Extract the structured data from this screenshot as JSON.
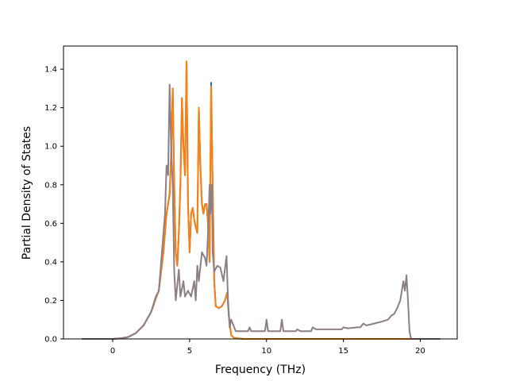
{
  "chart_data": {
    "type": "line",
    "title": "",
    "xlabel": "Frequency (THz)",
    "ylabel": "Partial Density of States",
    "xlim": [
      -3.2,
      22.4
    ],
    "ylim": [
      0,
      1.52
    ],
    "grid": false,
    "xticks": [
      {
        "v": 0,
        "label": "0"
      },
      {
        "v": 5,
        "label": "5"
      },
      {
        "v": 10,
        "label": "10"
      },
      {
        "v": 15,
        "label": "15"
      },
      {
        "v": 20,
        "label": "20"
      }
    ],
    "yticks": [
      {
        "v": 0,
        "label": "0.0"
      },
      {
        "v": 0.2,
        "label": "0.2"
      },
      {
        "v": 0.4,
        "label": "0.4"
      },
      {
        "v": 0.6,
        "label": "0.6"
      },
      {
        "v": 0.8,
        "label": "0.8"
      },
      {
        "v": 1.0,
        "label": "1.0"
      },
      {
        "v": 1.2,
        "label": "1.2"
      },
      {
        "v": 1.4,
        "label": "1.4"
      }
    ],
    "series": [
      {
        "color": "#1f77b4",
        "points": [
          [
            -2.0,
            0
          ],
          [
            0,
            0
          ],
          [
            0.5,
            0.003
          ],
          [
            1.0,
            0.01
          ],
          [
            1.5,
            0.03
          ],
          [
            2.0,
            0.07
          ],
          [
            2.5,
            0.14
          ],
          [
            2.8,
            0.21
          ],
          [
            3.0,
            0.25
          ],
          [
            3.3,
            0.45
          ],
          [
            3.5,
            0.65
          ],
          [
            3.7,
            0.75
          ],
          [
            3.8,
            0.95
          ],
          [
            3.9,
            1.3
          ],
          [
            4.0,
            0.8
          ],
          [
            4.1,
            0.45
          ],
          [
            4.2,
            0.38
          ],
          [
            4.3,
            0.55
          ],
          [
            4.4,
            0.8
          ],
          [
            4.5,
            1.25
          ],
          [
            4.6,
            1.0
          ],
          [
            4.7,
            0.85
          ],
          [
            4.8,
            1.44
          ],
          [
            4.9,
            0.7
          ],
          [
            5.0,
            0.45
          ],
          [
            5.1,
            0.65
          ],
          [
            5.2,
            0.68
          ],
          [
            5.3,
            0.62
          ],
          [
            5.4,
            0.58
          ],
          [
            5.5,
            0.55
          ],
          [
            5.6,
            1.2
          ],
          [
            5.7,
            0.9
          ],
          [
            5.8,
            0.7
          ],
          [
            5.9,
            0.65
          ],
          [
            6.0,
            0.7
          ],
          [
            6.1,
            0.7
          ],
          [
            6.2,
            0.6
          ],
          [
            6.3,
            0.4
          ],
          [
            6.4,
            1.33
          ],
          [
            6.5,
            0.8
          ],
          [
            6.6,
            0.3
          ],
          [
            6.7,
            0.17
          ],
          [
            6.9,
            0.16
          ],
          [
            7.1,
            0.17
          ],
          [
            7.3,
            0.2
          ],
          [
            7.45,
            0.24
          ],
          [
            7.55,
            0.12
          ],
          [
            7.7,
            0.02
          ],
          [
            7.9,
            0.005
          ],
          [
            8.5,
            0
          ],
          [
            15.0,
            0
          ],
          [
            19.2,
            0
          ],
          [
            19.4,
            0
          ],
          [
            21.3,
            0
          ]
        ]
      },
      {
        "color": "#ff7f0e",
        "points": [
          [
            -2.0,
            0
          ],
          [
            0,
            0
          ],
          [
            0.5,
            0.003
          ],
          [
            1.0,
            0.01
          ],
          [
            1.5,
            0.03
          ],
          [
            2.0,
            0.07
          ],
          [
            2.5,
            0.14
          ],
          [
            2.8,
            0.21
          ],
          [
            3.0,
            0.25
          ],
          [
            3.3,
            0.45
          ],
          [
            3.5,
            0.65
          ],
          [
            3.7,
            0.75
          ],
          [
            3.8,
            0.95
          ],
          [
            3.9,
            1.3
          ],
          [
            4.0,
            0.8
          ],
          [
            4.1,
            0.45
          ],
          [
            4.2,
            0.38
          ],
          [
            4.3,
            0.55
          ],
          [
            4.4,
            0.8
          ],
          [
            4.5,
            1.25
          ],
          [
            4.6,
            1.0
          ],
          [
            4.7,
            0.85
          ],
          [
            4.8,
            1.44
          ],
          [
            4.9,
            0.7
          ],
          [
            5.0,
            0.45
          ],
          [
            5.1,
            0.65
          ],
          [
            5.2,
            0.68
          ],
          [
            5.3,
            0.62
          ],
          [
            5.4,
            0.58
          ],
          [
            5.5,
            0.55
          ],
          [
            5.6,
            1.2
          ],
          [
            5.7,
            0.9
          ],
          [
            5.8,
            0.7
          ],
          [
            5.9,
            0.65
          ],
          [
            6.0,
            0.7
          ],
          [
            6.1,
            0.7
          ],
          [
            6.2,
            0.6
          ],
          [
            6.3,
            0.4
          ],
          [
            6.4,
            1.31
          ],
          [
            6.5,
            0.8
          ],
          [
            6.6,
            0.3
          ],
          [
            6.7,
            0.17
          ],
          [
            6.9,
            0.16
          ],
          [
            7.1,
            0.17
          ],
          [
            7.3,
            0.2
          ],
          [
            7.45,
            0.24
          ],
          [
            7.55,
            0.12
          ],
          [
            7.7,
            0.02
          ],
          [
            7.9,
            0.005
          ],
          [
            8.5,
            0
          ],
          [
            15.0,
            0
          ],
          [
            19.2,
            0
          ],
          [
            19.4,
            0
          ],
          [
            21.3,
            0
          ]
        ]
      },
      {
        "color": "#8c7f86",
        "points": [
          [
            -2.0,
            0
          ],
          [
            0,
            0
          ],
          [
            0.5,
            0.003
          ],
          [
            1.0,
            0.01
          ],
          [
            1.5,
            0.03
          ],
          [
            2.0,
            0.07
          ],
          [
            2.5,
            0.14
          ],
          [
            2.8,
            0.22
          ],
          [
            3.0,
            0.25
          ],
          [
            3.2,
            0.45
          ],
          [
            3.4,
            0.65
          ],
          [
            3.5,
            0.9
          ],
          [
            3.6,
            0.85
          ],
          [
            3.7,
            1.32
          ],
          [
            3.8,
            1.0
          ],
          [
            3.9,
            0.8
          ],
          [
            4.0,
            0.35
          ],
          [
            4.1,
            0.2
          ],
          [
            4.3,
            0.36
          ],
          [
            4.4,
            0.22
          ],
          [
            4.6,
            0.3
          ],
          [
            4.7,
            0.22
          ],
          [
            4.9,
            0.25
          ],
          [
            5.1,
            0.22
          ],
          [
            5.3,
            0.3
          ],
          [
            5.4,
            0.2
          ],
          [
            5.5,
            0.38
          ],
          [
            5.6,
            0.3
          ],
          [
            5.8,
            0.45
          ],
          [
            6.0,
            0.42
          ],
          [
            6.1,
            0.38
          ],
          [
            6.2,
            0.55
          ],
          [
            6.3,
            0.8
          ],
          [
            6.35,
            0.65
          ],
          [
            6.45,
            0.8
          ],
          [
            6.5,
            0.45
          ],
          [
            6.6,
            0.35
          ],
          [
            6.8,
            0.38
          ],
          [
            7.0,
            0.37
          ],
          [
            7.2,
            0.3
          ],
          [
            7.4,
            0.43
          ],
          [
            7.5,
            0.2
          ],
          [
            7.6,
            0.06
          ],
          [
            7.7,
            0.1
          ],
          [
            7.8,
            0.08
          ],
          [
            8.0,
            0.04
          ],
          [
            8.8,
            0.04
          ],
          [
            8.9,
            0.06
          ],
          [
            9.0,
            0.04
          ],
          [
            9.9,
            0.04
          ],
          [
            10.0,
            0.1
          ],
          [
            10.1,
            0.04
          ],
          [
            10.9,
            0.04
          ],
          [
            11.0,
            0.1
          ],
          [
            11.1,
            0.04
          ],
          [
            11.9,
            0.04
          ],
          [
            12.0,
            0.05
          ],
          [
            12.2,
            0.04
          ],
          [
            12.9,
            0.04
          ],
          [
            13.0,
            0.06
          ],
          [
            13.2,
            0.05
          ],
          [
            14.0,
            0.05
          ],
          [
            14.5,
            0.05
          ],
          [
            14.9,
            0.05
          ],
          [
            15.0,
            0.06
          ],
          [
            15.3,
            0.055
          ],
          [
            15.9,
            0.06
          ],
          [
            16.1,
            0.06
          ],
          [
            16.3,
            0.08
          ],
          [
            16.5,
            0.07
          ],
          [
            17.0,
            0.08
          ],
          [
            17.5,
            0.09
          ],
          [
            17.9,
            0.1
          ],
          [
            18.1,
            0.12
          ],
          [
            18.3,
            0.13
          ],
          [
            18.5,
            0.16
          ],
          [
            18.7,
            0.2
          ],
          [
            18.9,
            0.3
          ],
          [
            19.0,
            0.25
          ],
          [
            19.1,
            0.33
          ],
          [
            19.2,
            0.2
          ],
          [
            19.3,
            0.04
          ],
          [
            19.4,
            0
          ],
          [
            21.3,
            0
          ]
        ]
      }
    ]
  }
}
